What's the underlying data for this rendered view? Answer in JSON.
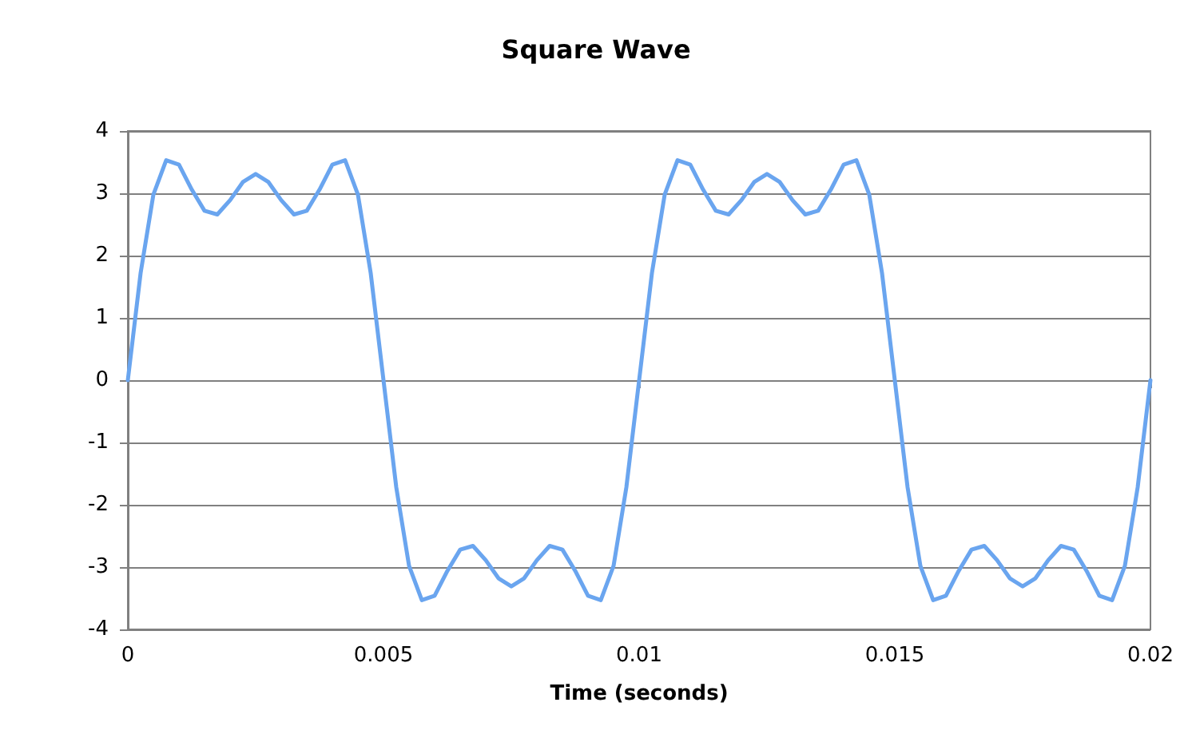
{
  "chart_data": {
    "type": "line",
    "title": "Square Wave",
    "xlabel": "Time (seconds)",
    "x": [
      0,
      0.00025,
      0.0005,
      0.00075,
      0.001,
      0.00125,
      0.0015,
      0.00175,
      0.002,
      0.00225,
      0.0025,
      0.00275,
      0.003,
      0.00325,
      0.0035,
      0.00375,
      0.004,
      0.00425,
      0.0045,
      0.00475,
      0.005,
      0.00525,
      0.0055,
      0.00575,
      0.006,
      0.00625,
      0.0065,
      0.00675,
      0.007,
      0.00725,
      0.0075,
      0.00775,
      0.008,
      0.00825,
      0.0085,
      0.00875,
      0.009,
      0.00925,
      0.0095,
      0.00975,
      0.01,
      0.01025,
      0.0105,
      0.01075,
      0.011,
      0.01125,
      0.0115,
      0.01175,
      0.012,
      0.01225,
      0.0125,
      0.01275,
      0.013,
      0.01325,
      0.0135,
      0.01375,
      0.014,
      0.01425,
      0.0145,
      0.01475,
      0.015,
      0.01525,
      0.0155,
      0.01575,
      0.016,
      0.01625,
      0.0165,
      0.01675,
      0.017,
      0.01725,
      0.0175,
      0.01775,
      0.018,
      0.01825,
      0.0185,
      0.01875,
      0.019,
      0.01925,
      0.0195,
      0.01975,
      0.02
    ],
    "series": [
      {
        "color": "#6aa5ef",
        "values": [
          0,
          1.72,
          2.98,
          3.53,
          3.46,
          3.06,
          2.72,
          2.66,
          2.89,
          3.18,
          3.31,
          3.18,
          2.89,
          2.66,
          2.72,
          3.06,
          3.46,
          3.53,
          2.98,
          1.72,
          0,
          -1.72,
          -2.98,
          -3.53,
          -3.46,
          -3.06,
          -2.72,
          -2.66,
          -2.89,
          -3.18,
          -3.31,
          -3.18,
          -2.89,
          -2.66,
          -2.72,
          -3.06,
          -3.46,
          -3.53,
          -2.98,
          -1.72,
          0,
          1.72,
          2.98,
          3.53,
          3.46,
          3.06,
          2.72,
          2.66,
          2.89,
          3.18,
          3.31,
          3.18,
          2.89,
          2.66,
          2.72,
          3.06,
          3.46,
          3.53,
          2.98,
          1.72,
          0,
          -1.72,
          -2.98,
          -3.53,
          -3.46,
          -3.06,
          -2.72,
          -2.66,
          -2.89,
          -3.18,
          -3.31,
          -3.18,
          -2.89,
          -2.66,
          -2.72,
          -3.06,
          -3.46,
          -3.53,
          -2.98,
          -1.72,
          0
        ]
      }
    ],
    "xlim": [
      0,
      0.02
    ],
    "xticks": [
      0,
      0.005,
      0.01,
      0.015,
      0.02
    ],
    "ylim": [
      -4,
      4
    ],
    "yticks": [
      -4,
      -3,
      -2,
      -1,
      0,
      1,
      2,
      3,
      4
    ],
    "grid": "y",
    "marker": "none",
    "line_style": "solid"
  }
}
